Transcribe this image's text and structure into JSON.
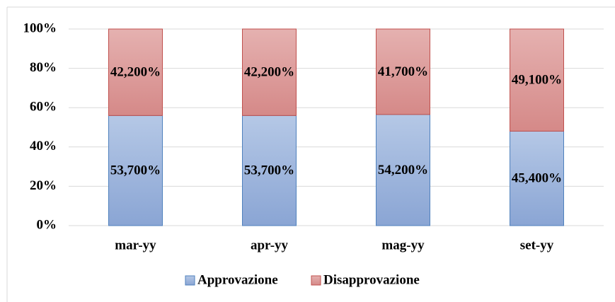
{
  "chart_data": {
    "type": "percent_stacked_bar",
    "categories": [
      "mar-yy",
      "apr-yy",
      "mag-yy",
      "set-yy"
    ],
    "series": [
      {
        "name": "Approvazione",
        "color": "#95b0db",
        "edge": "#4f81bd",
        "values": [
          53.7,
          53.7,
          54.2,
          45.4
        ],
        "value_labels": [
          "53,700%",
          "53,700%",
          "54,200%",
          "45,400%"
        ]
      },
      {
        "name": "Disapprovazione",
        "color": "#dc9a99",
        "edge": "#c0504d",
        "values": [
          42.2,
          42.2,
          41.7,
          49.1
        ],
        "value_labels": [
          "42,200%",
          "42,200%",
          "41,700%",
          "49,100%"
        ]
      }
    ],
    "ylim": [
      0,
      100
    ],
    "yticks": [
      {
        "value": 0,
        "label": "0%"
      },
      {
        "value": 20,
        "label": "20%"
      },
      {
        "value": 40,
        "label": "40%"
      },
      {
        "value": 60,
        "label": "60%"
      },
      {
        "value": 80,
        "label": "80%"
      },
      {
        "value": 100,
        "label": "100%"
      }
    ],
    "grid": true,
    "legend": "bottom"
  }
}
